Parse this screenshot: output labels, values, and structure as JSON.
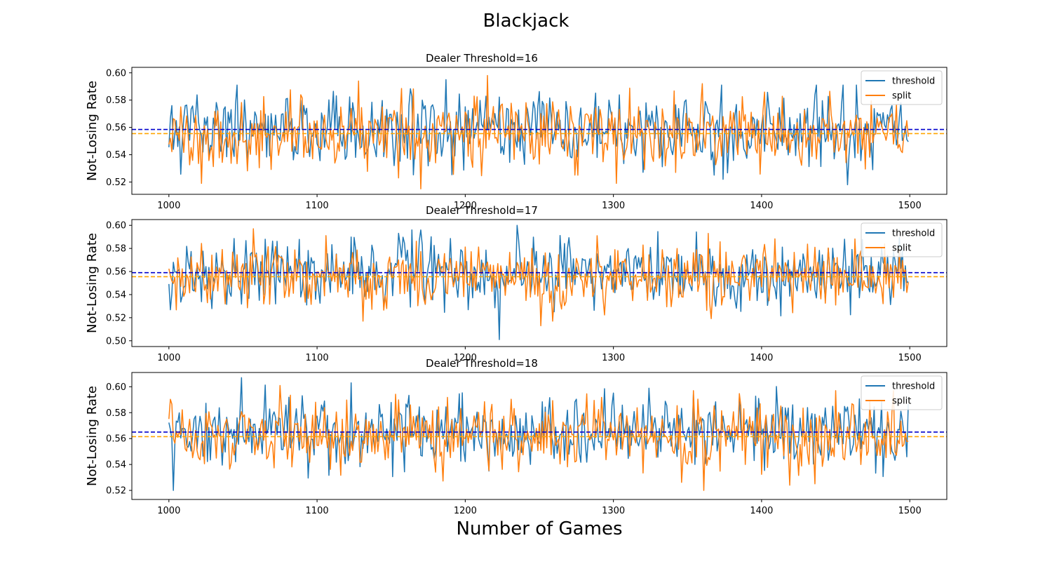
{
  "figure": {
    "title": "Blackjack",
    "xlabel": "Number of Games"
  },
  "colors": {
    "threshold": "#1f77b4",
    "split": "#ff7f0e",
    "threshold_mean": "#0000cc",
    "split_mean": "#ffa500"
  },
  "chart_data": [
    {
      "type": "line",
      "title": "Dealer Threshold=16",
      "xlabel": "",
      "ylabel": "Not-Losing Rate",
      "xlim": [
        975,
        1525
      ],
      "ylim": [
        0.511,
        0.604
      ],
      "xticks": [
        1000,
        1100,
        1200,
        1300,
        1400,
        1500
      ],
      "yticks": [
        0.52,
        0.54,
        0.56,
        0.58,
        0.6
      ],
      "legend": "top-right",
      "grid": false,
      "x_range": [
        1000,
        1500
      ],
      "seed": 16,
      "series": [
        {
          "name": "threshold",
          "mean": 0.5585,
          "sd": 0.0135,
          "min": 0.518,
          "max": 0.595
        },
        {
          "name": "split",
          "mean": 0.5555,
          "sd": 0.0135,
          "min": 0.515,
          "max": 0.598
        }
      ],
      "hlines": [
        {
          "series": "threshold",
          "y": 0.5585
        },
        {
          "series": "split",
          "y": 0.5555
        }
      ]
    },
    {
      "type": "line",
      "title": "Dealer Threshold=17",
      "xlabel": "",
      "ylabel": "Not-Losing Rate",
      "xlim": [
        975,
        1525
      ],
      "ylim": [
        0.495,
        0.605
      ],
      "xticks": [
        1000,
        1100,
        1200,
        1300,
        1400,
        1500
      ],
      "yticks": [
        0.5,
        0.52,
        0.54,
        0.56,
        0.58,
        0.6
      ],
      "legend": "top-right",
      "grid": false,
      "x_range": [
        1000,
        1500
      ],
      "seed": 17,
      "series": [
        {
          "name": "threshold",
          "mean": 0.559,
          "sd": 0.015,
          "min": 0.501,
          "max": 0.6
        },
        {
          "name": "split",
          "mean": 0.5555,
          "sd": 0.0135,
          "min": 0.513,
          "max": 0.597
        }
      ],
      "hlines": [
        {
          "series": "threshold",
          "y": 0.559
        },
        {
          "series": "split",
          "y": 0.5555
        }
      ]
    },
    {
      "type": "line",
      "title": "Dealer Threshold=18",
      "xlabel": "",
      "ylabel": "Not-Losing Rate",
      "xlim": [
        975,
        1525
      ],
      "ylim": [
        0.513,
        0.611
      ],
      "xticks": [
        1000,
        1100,
        1200,
        1300,
        1400,
        1500
      ],
      "yticks": [
        0.52,
        0.54,
        0.56,
        0.58,
        0.6
      ],
      "legend": "top-right",
      "grid": false,
      "x_range": [
        1000,
        1500
      ],
      "seed": 18,
      "series": [
        {
          "name": "threshold",
          "mean": 0.565,
          "sd": 0.0135,
          "min": 0.52,
          "max": 0.607
        },
        {
          "name": "split",
          "mean": 0.5615,
          "sd": 0.0135,
          "min": 0.52,
          "max": 0.601
        }
      ],
      "hlines": [
        {
          "series": "threshold",
          "y": 0.565
        },
        {
          "series": "split",
          "y": 0.5615
        }
      ]
    }
  ]
}
